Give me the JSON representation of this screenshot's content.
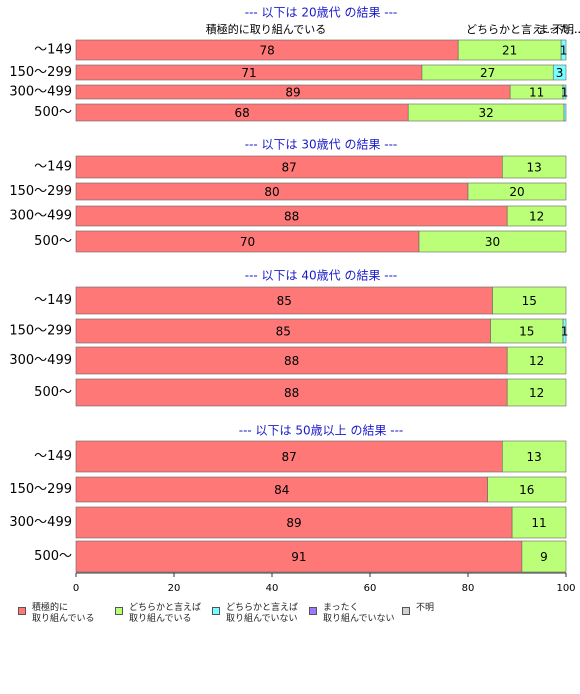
{
  "chart_data": {
    "type": "bar",
    "orientation": "horizontal",
    "stacked": true,
    "legend": [
      {
        "name": "積極的に\n取り組んでいる",
        "color": "#ff7878"
      },
      {
        "name": "どちらかと言えば\n取り組んでいる",
        "color": "#bbff78"
      },
      {
        "name": "どちらかと言えば\n取り組んでいない",
        "color": "#78ffff"
      },
      {
        "name": "まったく\n取り組んでいない",
        "color": "#a078ff"
      },
      {
        "name": "不明",
        "color": "#d0d0d0"
      }
    ],
    "xlim": [
      0,
      100
    ],
    "xticks": [
      0,
      20,
      40,
      60,
      80,
      100
    ],
    "panels": [
      {
        "title": "--- 以下は 20歳代 の結果 ---",
        "header_labels": [
          "積極的に取り組んでいる",
          "どちらかと言え...",
          "まった...",
          "不明..."
        ],
        "categories": [
          "～149",
          "150～299",
          "300～499",
          "500～"
        ],
        "series": [
          {
            "values": [
              78,
              70.6,
              88.6,
              67.8
            ],
            "value_labels": [
              "78",
              "71",
              "89",
              "68"
            ]
          },
          {
            "values": [
              21,
              26.8,
              10.8,
              31.8
            ],
            "value_labels": [
              "21",
              "27",
              "11",
              "32"
            ]
          },
          {
            "values": [
              1,
              2.6,
              0.6,
              0.4
            ],
            "value_labels": [
              "1",
              "3",
              "1",
              null
            ]
          },
          {
            "values": [
              0,
              0,
              0,
              0
            ]
          },
          {
            "values": [
              0,
              0,
              0,
              0
            ]
          }
        ]
      },
      {
        "title": "--- 以下は 30歳代 の結果 ---",
        "categories": [
          "～149",
          "150～299",
          "300～499",
          "500～"
        ],
        "series": [
          {
            "values": [
              87,
              80,
              88,
              70
            ]
          },
          {
            "values": [
              13,
              20,
              12,
              30
            ]
          },
          {
            "values": [
              0,
              0,
              0,
              0
            ]
          },
          {
            "values": [
              0,
              0,
              0,
              0
            ]
          },
          {
            "values": [
              0,
              0,
              0,
              0
            ]
          }
        ]
      },
      {
        "title": "--- 以下は 40歳代 の結果 ---",
        "categories": [
          "～149",
          "150～299",
          "300～499",
          "500～"
        ],
        "series": [
          {
            "values": [
              85,
              84.6,
              88,
              88
            ],
            "value_labels": [
              "85",
              "85",
              "88",
              "88"
            ]
          },
          {
            "values": [
              15,
              14.8,
              12,
              12
            ],
            "value_labels": [
              "15",
              "15",
              "12",
              "12"
            ]
          },
          {
            "values": [
              0,
              0.6,
              0,
              0
            ],
            "value_labels": [
              null,
              "1",
              null,
              null
            ]
          },
          {
            "values": [
              0,
              0,
              0,
              0
            ]
          },
          {
            "values": [
              0,
              0,
              0,
              0
            ]
          }
        ]
      },
      {
        "title": "--- 以下は 50歳以上 の結果 ---",
        "categories": [
          "～149",
          "150～299",
          "300～499",
          "500～"
        ],
        "series": [
          {
            "values": [
              87,
              84,
              89,
              91
            ]
          },
          {
            "values": [
              13,
              16,
              11,
              9
            ]
          },
          {
            "values": [
              0,
              0,
              0,
              0
            ]
          },
          {
            "values": [
              0,
              0,
              0,
              0
            ]
          },
          {
            "values": [
              0,
              0,
              0,
              0
            ]
          }
        ]
      }
    ]
  }
}
